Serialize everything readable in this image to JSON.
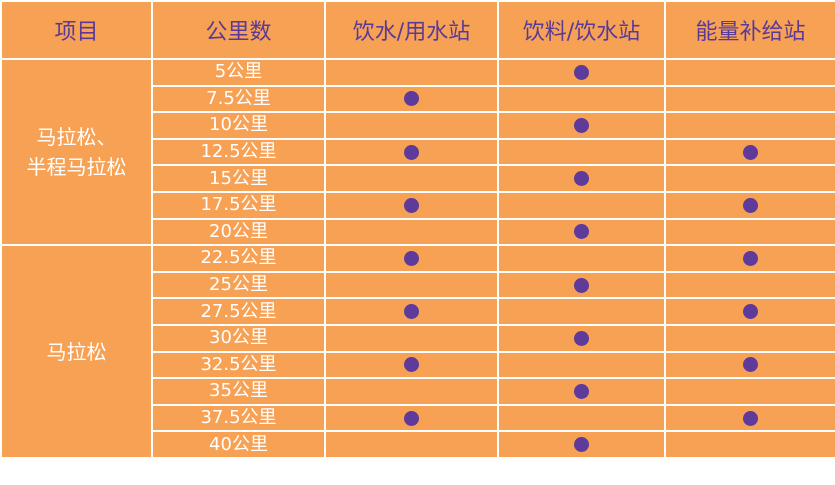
{
  "headers": [
    "项目",
    "公里数",
    "饮水/用水站",
    "饮料/饮水站",
    "能量补给站"
  ],
  "groups": [
    {
      "label_lines": [
        "马拉松、",
        "半程马拉松"
      ],
      "rows": [
        {
          "km": "5公里",
          "water": false,
          "drink": true,
          "energy": false
        },
        {
          "km": "7.5公里",
          "water": true,
          "drink": false,
          "energy": false
        },
        {
          "km": "10公里",
          "water": false,
          "drink": true,
          "energy": false
        },
        {
          "km": "12.5公里",
          "water": true,
          "drink": false,
          "energy": true
        },
        {
          "km": "15公里",
          "water": false,
          "drink": true,
          "energy": false
        },
        {
          "km": "17.5公里",
          "water": true,
          "drink": false,
          "energy": true
        },
        {
          "km": "20公里",
          "water": false,
          "drink": true,
          "energy": false
        }
      ]
    },
    {
      "label_lines": [
        "马拉松"
      ],
      "rows": [
        {
          "km": "22.5公里",
          "water": true,
          "drink": false,
          "energy": true
        },
        {
          "km": "25公里",
          "water": false,
          "drink": true,
          "energy": false
        },
        {
          "km": "27.5公里",
          "water": true,
          "drink": false,
          "energy": true
        },
        {
          "km": "30公里",
          "water": false,
          "drink": true,
          "energy": false
        },
        {
          "km": "32.5公里",
          "water": true,
          "drink": false,
          "energy": true
        },
        {
          "km": "35公里",
          "water": false,
          "drink": true,
          "energy": false
        },
        {
          "km": "37.5公里",
          "water": true,
          "drink": false,
          "energy": true
        },
        {
          "km": "40公里",
          "water": false,
          "drink": true,
          "energy": false
        }
      ]
    }
  ],
  "colors": {
    "cell_bg": "#f7a154",
    "header_text": "#5a3a96",
    "dot": "#5e3b9a",
    "border": "#ffffff"
  }
}
